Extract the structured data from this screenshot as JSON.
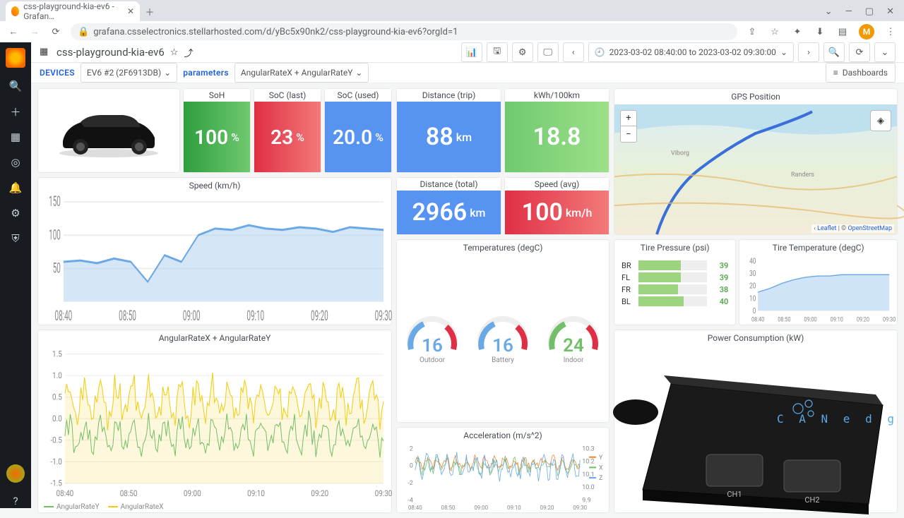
{
  "browser": {
    "tab_title": "css-playground-kia-ev6 - Grafan…",
    "url_host": "grafana.csselectronics.stellarhosted.com",
    "url_path": "/d/yBc5x90nk2/css-playground-kia-ev6?orgId=1",
    "avatar_initial": "M"
  },
  "header": {
    "title": "css-playground-kia-ev6",
    "time_range": "2023-03-02 08:40:00 to 2023-03-02 09:30:00"
  },
  "vars": {
    "devices_label": "DEVICES",
    "device_value": "EV6 #2 (2F6913DB)",
    "parameters_label": "parameters",
    "parameters_value": "AngularRateX + AngularRateY",
    "dash_btn": "Dashboards"
  },
  "stats": {
    "soh": {
      "title": "SoH",
      "value": "100",
      "unit": "%",
      "bg": "linear-gradient(90deg,#2e9e3f,#6fc96f)"
    },
    "soc_last": {
      "title": "SoC (last)",
      "value": "23",
      "unit": "%",
      "bg": "linear-gradient(90deg,#e02f44,#f27a7a)"
    },
    "soc_used": {
      "title": "SoC (used)",
      "value": "20.0",
      "unit": "%",
      "bg": "#5794f2"
    },
    "dist_trip": {
      "title": "Distance (trip)",
      "value": "88",
      "unit": "km",
      "bg": "#5794f2"
    },
    "kwh": {
      "title": "kWh/100km",
      "value": "18.8",
      "unit": "",
      "bg": "linear-gradient(90deg,#6fc96f,#9de08a)"
    },
    "dist_tot": {
      "title": "Distance (total)",
      "value": "2966",
      "unit": "km",
      "bg": "#5794f2"
    },
    "speed_avg": {
      "title": "Speed (avg)",
      "value": "100",
      "unit": "km/h",
      "bg": "linear-gradient(90deg,#e02f44,#f27a7a)"
    }
  },
  "speed_chart": {
    "title": "Speed (km/h)",
    "ylim": [
      0,
      150
    ],
    "yticks": [
      50,
      100,
      150
    ],
    "xticks": [
      "08:40",
      "08:50",
      "09:00",
      "09:10",
      "09:20",
      "09:30"
    ],
    "line_color": "#6aa9e6",
    "fill_color": "#b9d6f2",
    "series": [
      60,
      62,
      58,
      65,
      60,
      30,
      70,
      60,
      100,
      110,
      108,
      115,
      110,
      108,
      112,
      110,
      105,
      112,
      110,
      108
    ]
  },
  "angular_chart": {
    "title": "AngularRateX + AngularRateY",
    "ylim": [
      -1.5,
      1.5
    ],
    "yticks": [
      -1.5,
      -1.0,
      -0.5,
      0,
      0.5,
      1.0,
      1.5
    ],
    "xticks": [
      "08:40",
      "08:50",
      "09:00",
      "09:10",
      "09:20",
      "09:30"
    ],
    "seriesX": {
      "label": "AngularRateX",
      "color": "#f2cc0c"
    },
    "seriesY": {
      "label": "AngularRateY",
      "color": "#73bf69"
    }
  },
  "temps": {
    "title": "Temperatures (degC)",
    "gauges": [
      {
        "label": "Outdoor",
        "value": "16",
        "color": "#6aa9e6"
      },
      {
        "label": "Battery",
        "value": "16",
        "color": "#6aa9e6"
      },
      {
        "label": "Indoor",
        "value": "24",
        "color": "#73bf69"
      }
    ]
  },
  "accel": {
    "title": "Acceleration (m/s^2)",
    "ylim_left": [
      -4,
      2
    ],
    "yticks_left": [
      -4,
      -2,
      0,
      2
    ],
    "ylim_right": [
      9.9,
      10.3
    ],
    "yticks_right": [
      9.9,
      10.0,
      10.1,
      10.2,
      10.3
    ],
    "xticks": [
      "08:40",
      "08:50",
      "09:00",
      "09:10",
      "09:20",
      "09:30"
    ],
    "legend": [
      "Y",
      "X",
      "Z"
    ],
    "colors": {
      "X": "#73bf69",
      "Y": "#ed8936",
      "Z": "#6aa9e6"
    }
  },
  "gps": {
    "title": "GPS Position",
    "attr_leaflet": "Leaflet",
    "attr_osm": "OpenStreetMap"
  },
  "tire_pressure": {
    "title": "Tire Pressure (psi)",
    "rows": [
      {
        "label": "BR",
        "value": 39,
        "pct": 0.62
      },
      {
        "label": "FL",
        "value": 39,
        "pct": 0.62
      },
      {
        "label": "FR",
        "value": 38,
        "pct": 0.58
      },
      {
        "label": "BL",
        "value": 40,
        "pct": 0.66
      }
    ],
    "bar_color": "#9dd47f",
    "val_color": "#56a64b"
  },
  "tire_temp": {
    "title": "Tire Temperature (degC)",
    "ylim": [
      0,
      40
    ],
    "yticks": [
      0,
      10,
      20,
      30,
      40
    ],
    "xticks": [
      "08:40",
      "08:50",
      "09:00",
      "09:10",
      "09:20",
      "09:30"
    ],
    "line_color": "#6aa9e6",
    "fill_color": "#cfe4f7",
    "series": [
      15,
      18,
      22,
      25,
      27,
      28,
      28,
      29,
      29,
      29,
      29,
      29
    ]
  },
  "power": {
    "title": "Power Consumption (kW)"
  }
}
